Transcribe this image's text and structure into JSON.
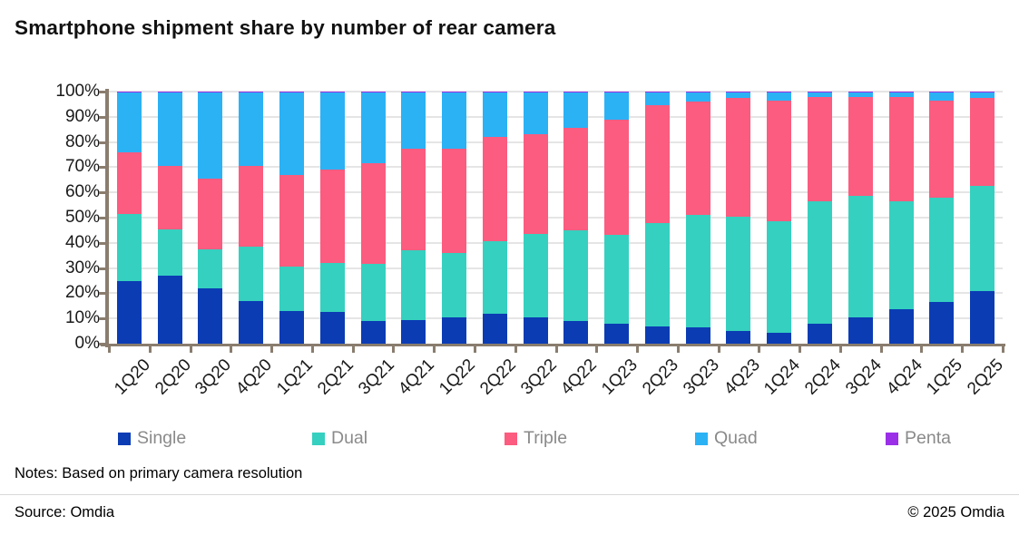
{
  "title": "Smartphone shipment share by number of rear camera",
  "notes": "Notes: Based on primary camera resolution",
  "source": "Source: Omdia",
  "copyright": "© 2025 Omdia",
  "colors": {
    "single": "#0b3cb4",
    "dual": "#35d0bf",
    "triple": "#fb5c7f",
    "quad": "#2bb2f5",
    "penta": "#9b2fe8",
    "axis": "#8a7d6e",
    "gridline": "#e5e5e5",
    "legend_text": "#8a8a8a"
  },
  "chart_data": {
    "type": "bar",
    "stacked": true,
    "title": "Smartphone shipment share by number of rear camera",
    "xlabel": "",
    "ylabel": "",
    "ylim": [
      0,
      100
    ],
    "y_tick_step": 10,
    "y_tick_labels": [
      "0%",
      "10%",
      "20%",
      "30%",
      "40%",
      "50%",
      "60%",
      "70%",
      "80%",
      "90%",
      "100%"
    ],
    "grid": true,
    "legend_position": "bottom",
    "categories": [
      "1Q20",
      "2Q20",
      "3Q20",
      "4Q20",
      "1Q21",
      "2Q21",
      "3Q21",
      "4Q21",
      "1Q22",
      "2Q22",
      "3Q22",
      "4Q22",
      "1Q23",
      "2Q23",
      "3Q23",
      "4Q23",
      "1Q24",
      "2Q24",
      "3Q24",
      "4Q24",
      "1Q25",
      "2Q25"
    ],
    "series": [
      {
        "name": "Single",
        "color": "#0b3cb4",
        "values": [
          25,
          27,
          22,
          17,
          13,
          12.5,
          9,
          9.5,
          10.5,
          12,
          10.5,
          9,
          8,
          7,
          6.5,
          5,
          4.5,
          8,
          10.5,
          13.5,
          16.5,
          21
        ]
      },
      {
        "name": "Dual",
        "color": "#35d0bf",
        "values": [
          26.5,
          18.5,
          15.5,
          21.5,
          17.5,
          19.5,
          22.5,
          27.5,
          25.5,
          28.5,
          33,
          36,
          35,
          41,
          44.5,
          45.5,
          44,
          48.5,
          48,
          43,
          41.5,
          41.5
        ]
      },
      {
        "name": "Triple",
        "color": "#fb5c7f",
        "values": [
          24.5,
          25,
          28,
          32,
          36.5,
          37,
          40,
          40.5,
          41.5,
          41.5,
          39.5,
          40.5,
          46,
          46.5,
          45,
          47,
          48,
          41.5,
          39.5,
          41.5,
          38.5,
          35
        ]
      },
      {
        "name": "Quad",
        "color": "#2bb2f5",
        "values": [
          23.5,
          29,
          34,
          29,
          32.5,
          30.5,
          28,
          22,
          22,
          17.5,
          16.5,
          14,
          10.5,
          5,
          3.5,
          2,
          3,
          1.5,
          1.5,
          1.5,
          3,
          2
        ]
      },
      {
        "name": "Penta",
        "color": "#9b2fe8",
        "values": [
          0.5,
          0.5,
          0.5,
          0.5,
          0.5,
          0.5,
          0.5,
          0.5,
          0.5,
          0.5,
          0.5,
          0.5,
          0.5,
          0.5,
          0.5,
          0.5,
          0.5,
          0.5,
          0.5,
          0.5,
          0.5,
          0.5
        ]
      }
    ]
  },
  "legend": {
    "items": [
      {
        "label": "Single",
        "color": "#0b3cb4"
      },
      {
        "label": "Dual",
        "color": "#35d0bf"
      },
      {
        "label": "Triple",
        "color": "#fb5c7f"
      },
      {
        "label": "Quad",
        "color": "#2bb2f5"
      },
      {
        "label": "Penta",
        "color": "#9b2fe8"
      }
    ]
  }
}
